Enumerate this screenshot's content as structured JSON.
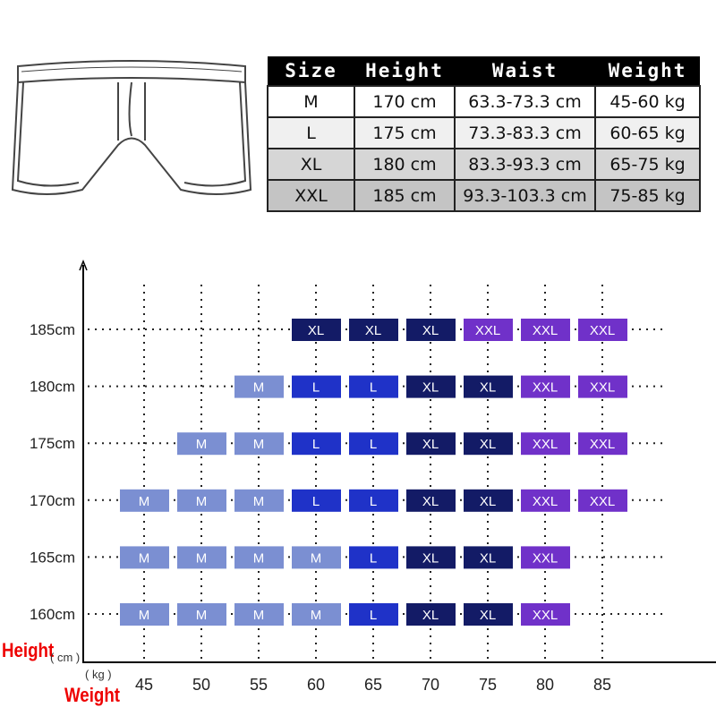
{
  "size_table": {
    "headers": [
      "Size",
      "Height",
      "Waist",
      "Weight"
    ],
    "rows": [
      [
        "M",
        "170 cm",
        "63.3-73.3 cm",
        "45-60 kg"
      ],
      [
        "L",
        "175 cm",
        "73.3-83.3 cm",
        "60-65 kg"
      ],
      [
        "XL",
        "180 cm",
        "83.3-93.3 cm",
        "65-75 kg"
      ],
      [
        "XXL",
        "185 cm",
        "93.3-103.3 cm",
        "75-85 kg"
      ]
    ]
  },
  "axis_labels": {
    "y_title": "Height",
    "y_unit": "( cm )",
    "x_title": "Weight",
    "x_unit": "( kg )"
  },
  "chart_data": {
    "type": "heatmap",
    "x": [
      45,
      50,
      55,
      60,
      65,
      70,
      75,
      80,
      85
    ],
    "x_tick_labels": [
      "45",
      "50",
      "55",
      "60",
      "65",
      "70",
      "75",
      "80",
      "85"
    ],
    "y": [
      185,
      180,
      175,
      170,
      165,
      160
    ],
    "y_tick_labels": [
      "185cm",
      "180cm",
      "175cm",
      "170cm",
      "165cm",
      "160cm"
    ],
    "xlabel": "Weight ( kg )",
    "ylabel": "Height ( cm )",
    "grid": "dotted",
    "cells": [
      [
        "",
        "",
        "",
        "XL",
        "XL",
        "XL",
        "XXL",
        "XXL",
        "XXL"
      ],
      [
        "",
        "",
        "M",
        "L",
        "L",
        "XL",
        "XL",
        "XXL",
        "XXL"
      ],
      [
        "",
        "M",
        "M",
        "L",
        "L",
        "XL",
        "XL",
        "XXL",
        "XXL"
      ],
      [
        "M",
        "M",
        "M",
        "L",
        "L",
        "XL",
        "XL",
        "XXL",
        "XXL"
      ],
      [
        "M",
        "M",
        "M",
        "M",
        "L",
        "XL",
        "XL",
        "XXL",
        ""
      ],
      [
        "M",
        "M",
        "M",
        "M",
        "L",
        "XL",
        "XL",
        "XXL",
        ""
      ]
    ],
    "colors": {
      "M": "#7b8fd2",
      "L": "#1f32c8",
      "XL": "#131b66",
      "XXL": "#7031c9"
    }
  }
}
